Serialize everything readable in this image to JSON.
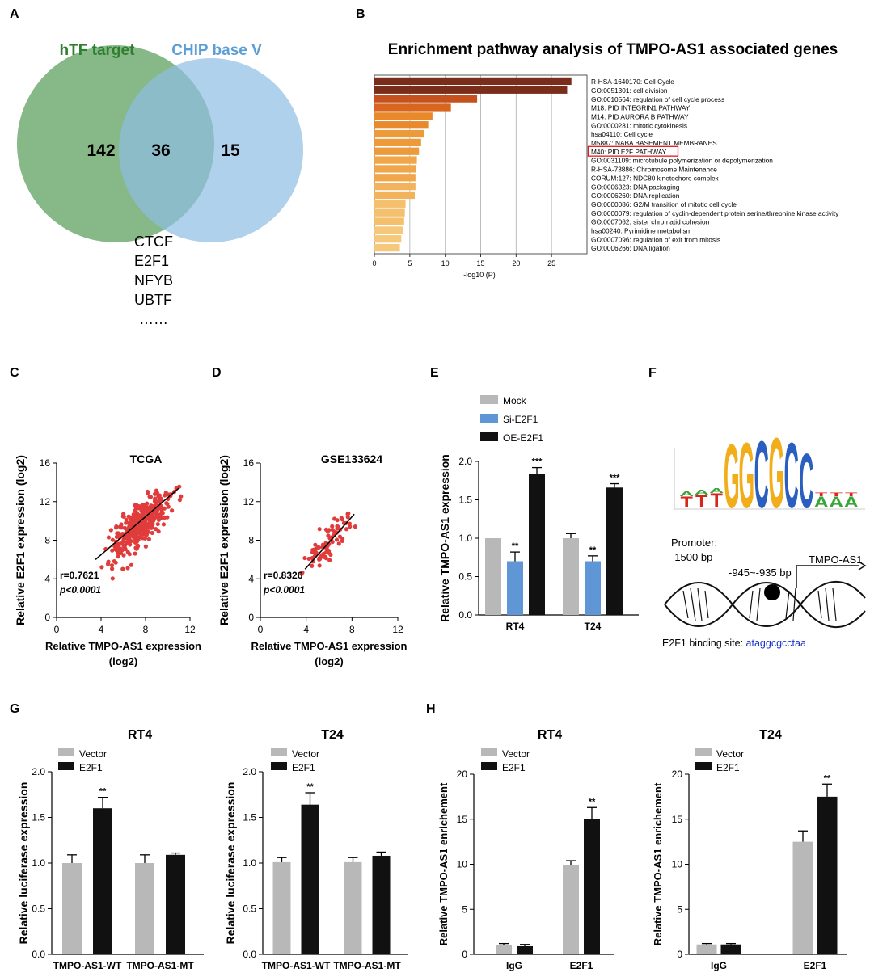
{
  "panel_letters": [
    "A",
    "B",
    "C",
    "D",
    "E",
    "F",
    "G",
    "H"
  ],
  "colors": {
    "green": "#5fa260",
    "blue": "#8fbde3",
    "red": "#e03c3c",
    "grey": "#b8b8b8",
    "mid_blue": "#5f97d6",
    "black": "#111111",
    "motif_blue": "#1a33cc",
    "highlight": "#e31a1c"
  },
  "venn": {
    "left_label": "hTF target",
    "right_label": "CHIP base V",
    "left_only": "142",
    "overlap": "36",
    "right_only": "15",
    "genes": [
      "CTCF",
      "E2F1",
      "NFYB",
      "UBTF",
      "……"
    ]
  },
  "chart_data": [
    {
      "id": "B",
      "type": "bar",
      "orientation": "horizontal",
      "title": "Enrichment pathway analysis of TMPO-AS1 associated genes",
      "xlabel": "-log10 (P)",
      "xlim": [
        0,
        30
      ],
      "xticks": [
        "0",
        "5",
        "10",
        "15",
        "20",
        "25"
      ],
      "highlighted": "M40: PID E2F PATHWAY",
      "categories": [
        "R-HSA-1640170: Cell Cycle",
        "GO:0051301: cell division",
        "GO:0010564: regulation of cell cycle process",
        "M18: PID INTEGRIN1 PATHWAY",
        "M14: PID AURORA B PATHWAY",
        "GO:0000281: mitotic cytokinesis",
        "hsa04110: Cell cycle",
        "M5887: NABA BASEMENT MEMBRANES",
        "M40: PID E2F PATHWAY",
        "GO:0031109: microtubule polymerization or depolymerization",
        "R-HSA-73886: Chromosome Maintenance",
        "CORUM:127: NDC80 kinetochore complex",
        "GO:0006323: DNA packaging",
        "GO:0006260: DNA replication",
        "GO:0000086: G2/M transition of mitotic cell cycle",
        "GO:0000079: regulation of cyclin-dependent protein serine/threonine kinase activity",
        "GO:0007062: sister chromatid cohesion",
        "hsa00240: Pyrimidine metabolism",
        "GO:0007096: regulation of exit from mitosis",
        "GO:0006266: DNA ligation"
      ],
      "values": [
        27.8,
        27.2,
        14.5,
        10.8,
        8.2,
        7.6,
        7.0,
        6.6,
        6.3,
        6.0,
        5.9,
        5.8,
        5.8,
        5.7,
        4.4,
        4.3,
        4.2,
        4.1,
        3.8,
        3.6
      ],
      "colors": [
        "#7b2d1c",
        "#7b2d1c",
        "#c5511f",
        "#d8661f",
        "#e88a2c",
        "#e88a2c",
        "#ed9a3a",
        "#ed9a3a",
        "#ed9a3a",
        "#f0a649",
        "#f0a649",
        "#f0a649",
        "#f2b35c",
        "#f2b35c",
        "#f4c06e",
        "#f4c06e",
        "#f4c06e",
        "#f5c87c",
        "#f5c87c",
        "#f5c87c"
      ]
    },
    {
      "id": "C",
      "type": "scatter",
      "title": "TCGA",
      "xlabel": "Relative TMPO-AS1 expression",
      "xlabel2": "(log2)",
      "ylabel": "Relative E2F1 expression (log2)",
      "xlim": [
        0,
        12
      ],
      "ylim": [
        0,
        16
      ],
      "xticks": [
        "0",
        "4",
        "8",
        "12"
      ],
      "yticks": [
        "0",
        "4",
        "8",
        "12",
        "16"
      ],
      "r_label": "r=0.7621",
      "p_label": "p<0.0001",
      "n_points": 380,
      "x_center": 7.5,
      "x_spread": 1.3,
      "y_center": 9.6,
      "y_spread": 1.1,
      "fit": {
        "x": [
          3.5,
          11.0
        ],
        "y": [
          6.0,
          13.4
        ]
      }
    },
    {
      "id": "D",
      "type": "scatter",
      "title": "GSE133624",
      "xlabel": "Relative TMPO-AS1 expression",
      "xlabel2": "(log2)",
      "ylabel": "Relative E2F1 expression (log2)",
      "xlim": [
        0,
        12
      ],
      "ylim": [
        0,
        16
      ],
      "xticks": [
        "0",
        "4",
        "8",
        "12"
      ],
      "yticks": [
        "0",
        "4",
        "8",
        "12",
        "16"
      ],
      "r_label": "r=0.8326",
      "p_label": "p<0.0001",
      "n_points": 80,
      "x_center": 6.1,
      "x_spread": 1.0,
      "y_center": 8.0,
      "y_spread": 0.9,
      "fit": {
        "x": [
          3.9,
          8.2
        ],
        "y": [
          5.0,
          10.7
        ]
      }
    },
    {
      "id": "E",
      "type": "bar",
      "ylabel": "Relative  TMPO-AS1 expression",
      "ylim": [
        0,
        2.0
      ],
      "yticks": [
        "0.0",
        "0.5",
        "1.0",
        "1.5",
        "2.0"
      ],
      "categories": [
        "RT4",
        "T24"
      ],
      "series": [
        {
          "name": "Mock",
          "values": [
            1.0,
            1.0
          ],
          "errors": [
            0.0,
            0.06
          ],
          "stars": [
            "",
            ""
          ]
        },
        {
          "name": "Si-E2F1",
          "values": [
            0.7,
            0.7
          ],
          "errors": [
            0.12,
            0.07
          ],
          "stars": [
            "**",
            "**"
          ]
        },
        {
          "name": "OE-E2F1",
          "values": [
            1.84,
            1.66
          ],
          "errors": [
            0.08,
            0.05
          ],
          "stars": [
            "***",
            "***"
          ]
        }
      ]
    },
    {
      "id": "G-RT4",
      "type": "bar",
      "title": "RT4",
      "ylabel": "Relative  luciferase expression",
      "ylim": [
        0,
        2.0
      ],
      "yticks": [
        "0.0",
        "0.5",
        "1.0",
        "1.5",
        "2.0"
      ],
      "categories": [
        "TMPO-AS1-WT",
        "TMPO-AS1-MT"
      ],
      "series": [
        {
          "name": "Vector",
          "values": [
            1.0,
            1.0
          ],
          "errors": [
            0.09,
            0.09
          ],
          "stars": [
            "",
            ""
          ]
        },
        {
          "name": "E2F1",
          "values": [
            1.6,
            1.09
          ],
          "errors": [
            0.12,
            0.02
          ],
          "stars": [
            "**",
            ""
          ]
        }
      ]
    },
    {
      "id": "G-T24",
      "type": "bar",
      "title": "T24",
      "ylabel": "Relative  luciferase expression",
      "ylim": [
        0,
        2.0
      ],
      "yticks": [
        "0.0",
        "0.5",
        "1.0",
        "1.5",
        "2.0"
      ],
      "categories": [
        "TMPO-AS1-WT",
        "TMPO-AS1-MT"
      ],
      "series": [
        {
          "name": "Vector",
          "values": [
            1.01,
            1.01
          ],
          "errors": [
            0.05,
            0.05
          ],
          "stars": [
            "",
            ""
          ]
        },
        {
          "name": "E2F1",
          "values": [
            1.64,
            1.08
          ],
          "errors": [
            0.13,
            0.04
          ],
          "stars": [
            "**",
            ""
          ]
        }
      ]
    },
    {
      "id": "H-RT4",
      "type": "bar",
      "title": "RT4",
      "ylabel": "Relative TMPO-AS1 enrichement",
      "ylim": [
        0,
        20
      ],
      "yticks": [
        "0",
        "5",
        "10",
        "15",
        "20"
      ],
      "categories": [
        "IgG",
        "E2F1"
      ],
      "series": [
        {
          "name": "Vector",
          "values": [
            1.0,
            9.9
          ],
          "errors": [
            0.2,
            0.5
          ],
          "stars": [
            "",
            ""
          ]
        },
        {
          "name": "E2F1",
          "values": [
            0.9,
            15.0
          ],
          "errors": [
            0.2,
            1.3
          ],
          "stars": [
            "",
            "**"
          ]
        }
      ]
    },
    {
      "id": "H-T24",
      "type": "bar",
      "title": "T24",
      "ylabel": "Relative TMPO-AS1 enrichement",
      "ylim": [
        0,
        20
      ],
      "yticks": [
        "0",
        "5",
        "10",
        "15",
        "20"
      ],
      "categories": [
        "IgG",
        "E2F1"
      ],
      "series": [
        {
          "name": "Vector",
          "values": [
            1.1,
            12.5
          ],
          "errors": [
            0.1,
            1.2
          ],
          "stars": [
            "",
            ""
          ]
        },
        {
          "name": "E2F1",
          "values": [
            1.1,
            17.5
          ],
          "errors": [
            0.1,
            1.4
          ],
          "stars": [
            "",
            "**"
          ]
        }
      ]
    }
  ],
  "motif": {
    "letters": [
      [
        "T",
        "A"
      ],
      [
        "T",
        "A"
      ],
      [
        "T",
        "A"
      ],
      [
        "G"
      ],
      [
        "G"
      ],
      [
        "C"
      ],
      [
        "G"
      ],
      [
        "C"
      ],
      [
        "C"
      ],
      [
        "A",
        "T"
      ],
      [
        "A",
        "T"
      ],
      [
        "A",
        "T"
      ]
    ],
    "promoter_label": "Promoter:",
    "promoter_range": "-1500 bp",
    "site_range": "-945~-935 bp",
    "gene": "TMPO-AS1",
    "binding_label": "E2F1 binding site: ",
    "binding_seq": "ataggcgcctaa"
  }
}
